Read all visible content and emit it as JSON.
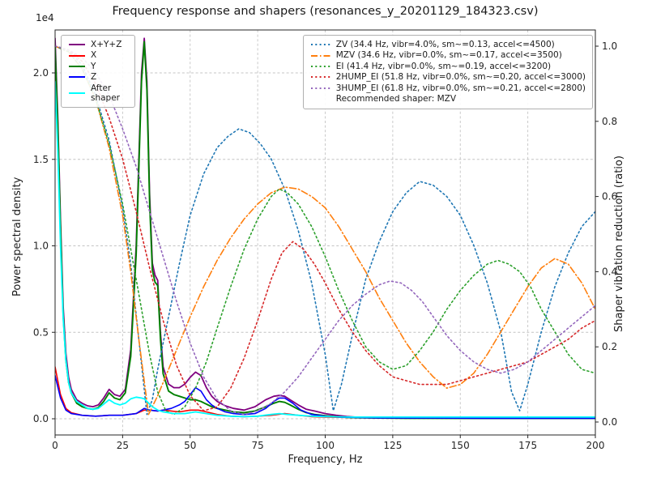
{
  "chart_data": {
    "type": "line",
    "title": "Frequency response and shapers (resonances_y_20201129_184323.csv)",
    "xlabel": "Frequency, Hz",
    "ylabel_left": "Power spectral density",
    "ylabel_right": "Shaper vibration reduction (ratio)",
    "y_left_offset_label": "1e4",
    "psd_scale": 10000,
    "grid": true,
    "legend_left_position": "upper left",
    "legend_right_position": "upper right",
    "xlim": [
      0,
      200
    ],
    "x_ticks": [
      0,
      25,
      50,
      75,
      100,
      125,
      150,
      175,
      200
    ],
    "x_tick_labels": [
      "0",
      "25",
      "50",
      "75",
      "100",
      "125",
      "150",
      "175",
      "200"
    ],
    "y_left_ticks": [
      0.0,
      0.5,
      1.0,
      1.5,
      2.0
    ],
    "y_left_tick_labels": [
      "0.0",
      "0.5",
      "1.0",
      "1.5",
      "2.0"
    ],
    "y_right_ticks": [
      0.0,
      0.2,
      0.4,
      0.6,
      0.8,
      1.0
    ],
    "y_right_tick_labels": [
      "0.0",
      "0.2",
      "0.4",
      "0.6",
      "0.8",
      "1.0"
    ],
    "psd_series": [
      {
        "name": "X+Y+Z",
        "color": "#800080",
        "style": "solid",
        "x": [
          0,
          1,
          2,
          3,
          4,
          5,
          6,
          8,
          10,
          12,
          14,
          16,
          18,
          20,
          22,
          24,
          26,
          28,
          30,
          31,
          32,
          33,
          34,
          35,
          36,
          37,
          38,
          39,
          40,
          42,
          44,
          46,
          48,
          50,
          52,
          54,
          56,
          58,
          60,
          63,
          66,
          70,
          74,
          78,
          81,
          83,
          85,
          87,
          90,
          93,
          96,
          100,
          104,
          108,
          112,
          120,
          130,
          140,
          160,
          180,
          200
        ],
        "y": [
          2.2,
          1.75,
          1.15,
          0.65,
          0.38,
          0.24,
          0.17,
          0.11,
          0.09,
          0.075,
          0.07,
          0.08,
          0.12,
          0.17,
          0.14,
          0.13,
          0.17,
          0.4,
          1.0,
          1.5,
          2.0,
          2.2,
          1.95,
          1.3,
          0.9,
          0.83,
          0.8,
          0.5,
          0.3,
          0.2,
          0.18,
          0.18,
          0.2,
          0.24,
          0.27,
          0.25,
          0.18,
          0.13,
          0.1,
          0.075,
          0.06,
          0.05,
          0.07,
          0.11,
          0.13,
          0.135,
          0.13,
          0.11,
          0.08,
          0.055,
          0.045,
          0.03,
          0.02,
          0.013,
          0.009,
          0.006,
          0.005,
          0.004,
          0.004,
          0.004,
          0.004
        ]
      },
      {
        "name": "X",
        "color": "#ff0000",
        "style": "solid",
        "x": [
          0,
          2,
          4,
          6,
          10,
          15,
          20,
          25,
          30,
          33,
          35,
          38,
          40,
          43,
          46,
          50,
          53,
          56,
          60,
          65,
          70,
          75,
          80,
          85,
          90,
          95,
          100,
          110,
          120,
          140,
          160,
          180,
          200
        ],
        "y": [
          0.3,
          0.14,
          0.06,
          0.035,
          0.02,
          0.015,
          0.02,
          0.02,
          0.03,
          0.05,
          0.05,
          0.045,
          0.05,
          0.045,
          0.04,
          0.05,
          0.05,
          0.04,
          0.025,
          0.015,
          0.012,
          0.015,
          0.02,
          0.03,
          0.02,
          0.012,
          0.01,
          0.007,
          0.005,
          0.004,
          0.004,
          0.003,
          0.003
        ]
      },
      {
        "name": "Y",
        "color": "#008000",
        "style": "solid",
        "x": [
          0,
          1,
          2,
          3,
          4,
          5,
          6,
          8,
          10,
          12,
          14,
          16,
          18,
          20,
          22,
          24,
          26,
          28,
          30,
          31,
          32,
          33,
          34,
          35,
          36,
          37,
          38,
          39,
          40,
          42,
          44,
          46,
          48,
          50,
          52,
          54,
          56,
          58,
          60,
          63,
          66,
          70,
          74,
          78,
          81,
          83,
          85,
          87,
          90,
          93,
          96,
          100,
          104,
          108,
          112,
          120,
          130,
          140,
          160,
          180,
          200
        ],
        "y": [
          2.15,
          1.7,
          1.1,
          0.6,
          0.34,
          0.21,
          0.15,
          0.09,
          0.07,
          0.06,
          0.055,
          0.065,
          0.1,
          0.15,
          0.12,
          0.11,
          0.15,
          0.36,
          0.95,
          1.45,
          1.95,
          2.18,
          1.9,
          1.25,
          0.86,
          0.79,
          0.77,
          0.46,
          0.26,
          0.16,
          0.14,
          0.13,
          0.12,
          0.11,
          0.11,
          0.1,
          0.085,
          0.07,
          0.06,
          0.05,
          0.04,
          0.035,
          0.045,
          0.07,
          0.09,
          0.1,
          0.095,
          0.08,
          0.055,
          0.035,
          0.025,
          0.018,
          0.012,
          0.008,
          0.006,
          0.004,
          0.003,
          0.003,
          0.002,
          0.002,
          0.002
        ]
      },
      {
        "name": "Z",
        "color": "#0000ff",
        "style": "solid",
        "x": [
          0,
          2,
          4,
          6,
          10,
          15,
          20,
          25,
          30,
          33,
          35,
          38,
          40,
          43,
          46,
          48,
          50,
          52,
          54,
          56,
          58,
          60,
          63,
          66,
          70,
          74,
          78,
          81,
          83,
          85,
          88,
          91,
          95,
          100,
          105,
          110,
          120,
          140,
          160,
          180,
          200
        ],
        "y": [
          0.25,
          0.12,
          0.05,
          0.03,
          0.02,
          0.015,
          0.02,
          0.02,
          0.03,
          0.06,
          0.05,
          0.045,
          0.05,
          0.06,
          0.08,
          0.1,
          0.14,
          0.18,
          0.16,
          0.11,
          0.08,
          0.06,
          0.04,
          0.03,
          0.025,
          0.03,
          0.06,
          0.1,
          0.12,
          0.12,
          0.09,
          0.05,
          0.025,
          0.015,
          0.01,
          0.008,
          0.005,
          0.004,
          0.003,
          0.003,
          0.003
        ]
      },
      {
        "name": "After shaper",
        "color": "#00ffff",
        "style": "solid",
        "x": [
          0,
          1,
          2,
          3,
          4,
          5,
          6,
          8,
          10,
          12,
          14,
          16,
          18,
          20,
          22,
          24,
          26,
          28,
          30,
          32,
          33,
          34,
          36,
          38,
          40,
          44,
          48,
          52,
          56,
          60,
          65,
          70,
          75,
          80,
          83,
          86,
          90,
          95,
          100,
          110,
          120,
          140,
          160,
          180,
          200
        ],
        "y": [
          1.95,
          1.55,
          1.0,
          0.58,
          0.34,
          0.21,
          0.15,
          0.1,
          0.08,
          0.06,
          0.055,
          0.06,
          0.085,
          0.11,
          0.09,
          0.08,
          0.09,
          0.115,
          0.125,
          0.12,
          0.115,
          0.1,
          0.07,
          0.05,
          0.04,
          0.03,
          0.03,
          0.04,
          0.03,
          0.02,
          0.015,
          0.012,
          0.015,
          0.025,
          0.03,
          0.025,
          0.02,
          0.015,
          0.012,
          0.01,
          0.01,
          0.01,
          0.01,
          0.01,
          0.01
        ]
      }
    ],
    "shaper_series": [
      {
        "name": "ZV",
        "label": "ZV (34.4 Hz, vibr=4.0%, sm~=0.13, accel<=4500)",
        "color": "#1f77b4",
        "style": "dotted",
        "x": [
          0,
          5,
          10,
          15,
          20,
          25,
          28,
          31,
          34,
          36,
          38,
          42,
          46,
          50,
          55,
          60,
          64,
          68,
          72,
          76,
          80,
          85,
          90,
          95,
          100,
          103,
          106,
          110,
          115,
          120,
          125,
          130,
          135,
          140,
          145,
          150,
          155,
          160,
          165,
          169,
          172,
          175,
          180,
          185,
          190,
          195,
          200
        ],
        "y": [
          1.0,
          0.99,
          0.95,
          0.87,
          0.75,
          0.57,
          0.42,
          0.22,
          0.02,
          0.06,
          0.14,
          0.28,
          0.42,
          0.55,
          0.66,
          0.73,
          0.76,
          0.78,
          0.77,
          0.74,
          0.7,
          0.62,
          0.51,
          0.37,
          0.18,
          0.03,
          0.1,
          0.23,
          0.38,
          0.48,
          0.56,
          0.61,
          0.64,
          0.63,
          0.6,
          0.55,
          0.47,
          0.37,
          0.24,
          0.08,
          0.03,
          0.1,
          0.24,
          0.36,
          0.45,
          0.52,
          0.56
        ]
      },
      {
        "name": "MZV",
        "label": "MZV (34.6 Hz, vibr=0.0%, sm~=0.17, accel<=3500)",
        "color": "#ff7f0e",
        "style": "dashdot",
        "x": [
          0,
          5,
          10,
          15,
          20,
          25,
          28,
          31,
          34.6,
          38,
          42,
          46,
          50,
          55,
          60,
          65,
          70,
          75,
          80,
          85,
          90,
          95,
          100,
          105,
          110,
          115,
          120,
          125,
          130,
          135,
          140,
          145,
          150,
          155,
          160,
          165,
          170,
          175,
          180,
          185,
          190,
          195,
          200
        ],
        "y": [
          1.0,
          0.985,
          0.94,
          0.86,
          0.73,
          0.55,
          0.4,
          0.22,
          0.02,
          0.07,
          0.14,
          0.21,
          0.28,
          0.36,
          0.43,
          0.49,
          0.54,
          0.58,
          0.61,
          0.625,
          0.62,
          0.6,
          0.57,
          0.52,
          0.46,
          0.4,
          0.33,
          0.27,
          0.21,
          0.16,
          0.12,
          0.09,
          0.1,
          0.13,
          0.18,
          0.24,
          0.3,
          0.36,
          0.41,
          0.435,
          0.42,
          0.37,
          0.3
        ]
      },
      {
        "name": "EI",
        "label": "EI (41.4 Hz, vibr=0.0%, sm~=0.19, accel<=3200)",
        "color": "#2ca02c",
        "style": "dotted",
        "x": [
          0,
          5,
          10,
          15,
          20,
          25,
          30,
          35,
          38,
          41,
          44,
          48,
          52,
          56,
          60,
          65,
          70,
          75,
          80,
          83,
          86,
          90,
          95,
          100,
          105,
          110,
          115,
          120,
          125,
          130,
          135,
          140,
          145,
          150,
          155,
          160,
          164,
          168,
          172,
          176,
          180,
          185,
          190,
          195,
          200
        ],
        "y": [
          1.0,
          0.985,
          0.94,
          0.86,
          0.74,
          0.58,
          0.38,
          0.18,
          0.08,
          0.03,
          0.02,
          0.04,
          0.09,
          0.16,
          0.25,
          0.36,
          0.46,
          0.54,
          0.6,
          0.62,
          0.61,
          0.58,
          0.52,
          0.44,
          0.35,
          0.27,
          0.2,
          0.16,
          0.14,
          0.15,
          0.19,
          0.24,
          0.3,
          0.35,
          0.39,
          0.42,
          0.43,
          0.42,
          0.4,
          0.36,
          0.3,
          0.24,
          0.18,
          0.14,
          0.13
        ]
      },
      {
        "name": "2HUMP_EI",
        "label": "2HUMP_EI (51.8 Hz, vibr=0.0%, sm~=0.20, accel<=3000)",
        "color": "#d62728",
        "style": "dotted",
        "x": [
          0,
          5,
          10,
          15,
          20,
          25,
          30,
          35,
          40,
          45,
          50,
          55,
          60,
          65,
          70,
          75,
          80,
          84,
          88,
          92,
          96,
          100,
          105,
          110,
          115,
          120,
          125,
          130,
          135,
          140,
          145,
          150,
          155,
          160,
          165,
          170,
          175,
          180,
          185,
          190,
          195,
          200
        ],
        "y": [
          1.0,
          0.99,
          0.96,
          0.9,
          0.81,
          0.7,
          0.56,
          0.41,
          0.27,
          0.15,
          0.07,
          0.03,
          0.04,
          0.09,
          0.17,
          0.27,
          0.38,
          0.45,
          0.48,
          0.46,
          0.42,
          0.37,
          0.3,
          0.24,
          0.19,
          0.15,
          0.12,
          0.11,
          0.1,
          0.1,
          0.1,
          0.11,
          0.12,
          0.13,
          0.14,
          0.15,
          0.16,
          0.18,
          0.2,
          0.22,
          0.25,
          0.27
        ]
      },
      {
        "name": "3HUMP_EI",
        "label": "3HUMP_EI (61.8 Hz, vibr=0.0%, sm~=0.21, accel<=2800)",
        "color": "#9467bd",
        "style": "dotted",
        "x": [
          0,
          5,
          10,
          15,
          20,
          25,
          30,
          35,
          40,
          45,
          50,
          55,
          60,
          65,
          70,
          75,
          80,
          85,
          90,
          95,
          100,
          105,
          110,
          115,
          120,
          124,
          128,
          132,
          136,
          140,
          145,
          150,
          155,
          160,
          165,
          170,
          175,
          180,
          185,
          190,
          195,
          200
        ],
        "y": [
          1.0,
          0.99,
          0.97,
          0.93,
          0.87,
          0.78,
          0.68,
          0.56,
          0.44,
          0.32,
          0.21,
          0.12,
          0.06,
          0.03,
          0.02,
          0.03,
          0.05,
          0.08,
          0.12,
          0.17,
          0.22,
          0.27,
          0.31,
          0.34,
          0.365,
          0.375,
          0.37,
          0.35,
          0.32,
          0.28,
          0.23,
          0.19,
          0.16,
          0.14,
          0.13,
          0.14,
          0.16,
          0.19,
          0.22,
          0.25,
          0.28,
          0.31
        ]
      }
    ],
    "recommended_label": "Recommended shaper: MZV",
    "colors": {
      "grid": "#c4c4c4",
      "spine": "#262626"
    }
  }
}
